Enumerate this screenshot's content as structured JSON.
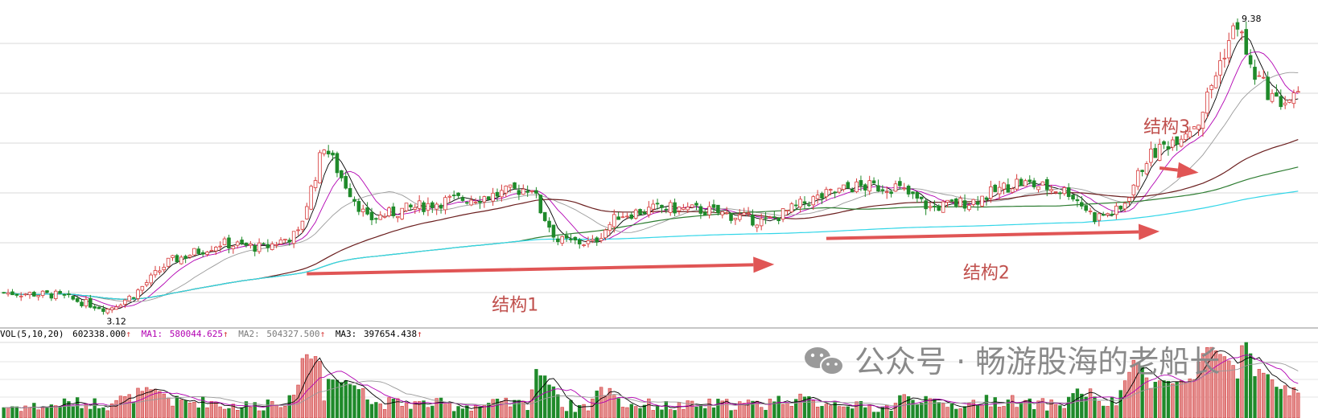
{
  "chart_data": {
    "type": "candlestick",
    "price_panel": {
      "y_range": [
        2.9,
        9.6
      ],
      "grid": true,
      "low_marker": "3.12",
      "high_marker": "9.38",
      "moving_averages": [
        {
          "color": "#000000"
        },
        {
          "color": "#b200b2"
        },
        {
          "color": "#9a9a9a"
        },
        {
          "color": "#6b1f1f"
        },
        {
          "color": "#2e7d32"
        },
        {
          "color": "#33d6e8"
        }
      ],
      "annotations": [
        {
          "text": "结构1",
          "arrow_from": [
            70,
            3.95
          ],
          "arrow_to": [
            178,
            4.15
          ]
        },
        {
          "text": "结构2",
          "arrow_from": [
            190,
            4.7
          ],
          "arrow_to": [
            267,
            4.85
          ]
        },
        {
          "text": "结构3",
          "arrow_from": [
            267,
            6.2
          ],
          "arrow_to": [
            276,
            6.1
          ]
        }
      ]
    },
    "volume_panel": {
      "legend": {
        "prefix": "VOL(5,10,20)",
        "vol": "602338.000",
        "ma1_label": "MA1:",
        "ma1": "580044.625",
        "ma2_label": "MA2:",
        "ma2": "504327.500",
        "ma3_label": "MA3:",
        "ma3": "397654.438",
        "arrow": "↑"
      }
    },
    "colors": {
      "up": "#d63a3a",
      "up_fill": "#ffffff",
      "down": "#1f8a2a",
      "arrow": "#e05555",
      "annotation": "#c0504d",
      "grid": "#d8d8d8"
    }
  },
  "watermark": {
    "text": "公众号 · 畅游股海的老船长",
    "icon": "wechat-icon"
  }
}
